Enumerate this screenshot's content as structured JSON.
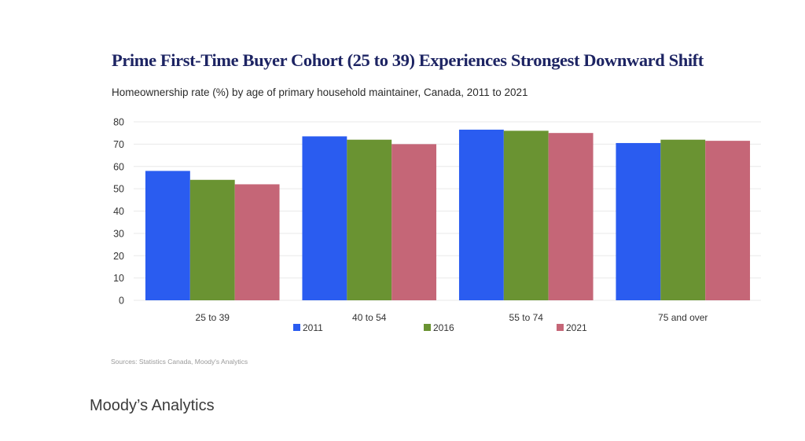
{
  "chart_data": {
    "type": "bar",
    "title": "Prime First-Time Buyer Cohort (25 to 39) Experiences Strongest Downward Shift",
    "subtitle": "Homeownership rate (%) by age of primary household maintainer, Canada, 2011 to 2021",
    "xlabel": "",
    "ylabel": "",
    "categories": [
      "25 to 39",
      "40 to 54",
      "55 to 74",
      "75 and over"
    ],
    "series": [
      {
        "name": "2011",
        "color": "#2a5cf0",
        "values": [
          58.0,
          73.5,
          76.5,
          70.5
        ]
      },
      {
        "name": "2016",
        "color": "#6a9332",
        "values": [
          54.0,
          72.0,
          76.0,
          72.0
        ]
      },
      {
        "name": "2021",
        "color": "#c56677",
        "values": [
          52.0,
          70.0,
          75.0,
          71.5
        ]
      }
    ],
    "ylim": [
      0,
      80
    ],
    "yticks": [
      0,
      10,
      20,
      30,
      40,
      50,
      60,
      70,
      80
    ],
    "ytick_labels": [
      "0",
      "10",
      "20",
      "30",
      "40",
      "50",
      "60",
      "70",
      "80"
    ],
    "grid": true,
    "legend_position": "bottom",
    "source": "Sources: Statistics Canada, Moody's Analytics"
  },
  "caption": "Moody’s Analytics"
}
